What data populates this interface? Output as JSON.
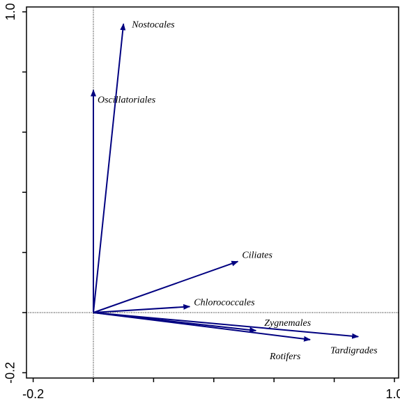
{
  "chart_data": {
    "type": "biplot",
    "title": "",
    "xlabel": "",
    "ylabel": "",
    "xlim": [
      -0.22,
      1.02
    ],
    "ylim": [
      -0.22,
      1.0
    ],
    "grid": false,
    "x_tick_labels": [
      {
        "value": -0.2,
        "label": "-0.2"
      },
      {
        "value": 1.0,
        "label": "1.0"
      }
    ],
    "y_tick_labels": [
      {
        "value": 1.0,
        "label": "1.0"
      },
      {
        "value": -0.2,
        "label": "-0.2"
      }
    ],
    "x_ticks": [
      -0.2,
      0.0,
      0.2,
      0.4,
      0.6,
      0.8,
      1.0
    ],
    "y_ticks": [
      -0.2,
      0.0,
      0.2,
      0.4,
      0.6,
      0.8,
      1.0
    ],
    "origin": [
      0,
      0
    ],
    "vectors": [
      {
        "name": "Nostocales",
        "x": 0.1,
        "y": 0.96
      },
      {
        "name": "Oscillatoriales",
        "x": 0.0,
        "y": 0.74
      },
      {
        "name": "Ciliates",
        "x": 0.48,
        "y": 0.17
      },
      {
        "name": "Chlorococcales",
        "x": 0.32,
        "y": 0.02
      },
      {
        "name": "Zygnemales",
        "x": 0.54,
        "y": -0.06
      },
      {
        "name": "Rotifers",
        "x": 0.72,
        "y": -0.09
      },
      {
        "name": "Tardigrades",
        "x": 0.88,
        "y": -0.08
      }
    ],
    "colors": {
      "vector": "#000080",
      "axis": "#000000"
    }
  }
}
